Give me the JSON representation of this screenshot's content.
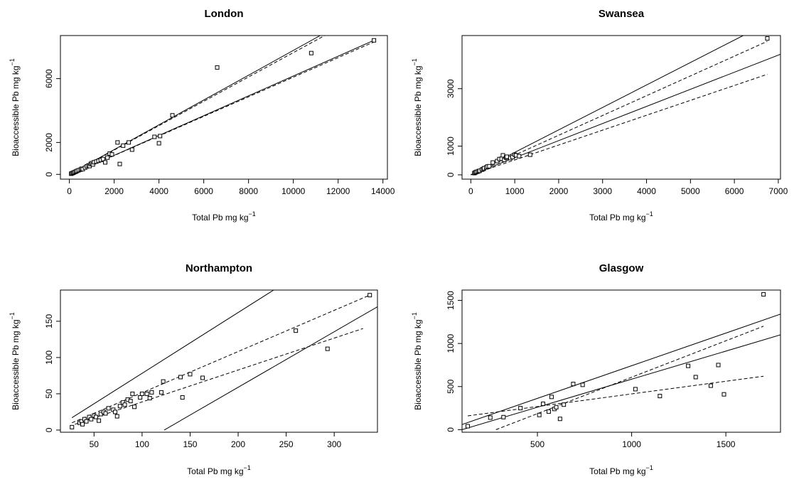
{
  "figure": {
    "type": "multi-panel scatter",
    "panel_count": 4,
    "line_color": "#000000",
    "background": "#ffffff"
  },
  "chart_data": [
    {
      "type": "scatter",
      "title": "London",
      "xlabel": "Total Pb mg kg",
      "xlabel_sup": "−1",
      "ylabel": "Bioaccessible Pb mg kg",
      "ylabel_sup": "−1",
      "xlim": [
        -400,
        14200
      ],
      "ylim": [
        -300,
        8700
      ],
      "xticks": [
        0,
        2000,
        4000,
        6000,
        8000,
        10000,
        12000,
        14000
      ],
      "yticks": [
        0,
        2000,
        6000
      ],
      "points": [
        [
          80,
          40
        ],
        [
          120,
          70
        ],
        [
          160,
          90
        ],
        [
          200,
          120
        ],
        [
          250,
          150
        ],
        [
          300,
          180
        ],
        [
          350,
          220
        ],
        [
          420,
          260
        ],
        [
          500,
          300
        ],
        [
          550,
          350
        ],
        [
          600,
          330
        ],
        [
          700,
          420
        ],
        [
          780,
          500
        ],
        [
          850,
          560
        ],
        [
          900,
          520
        ],
        [
          950,
          650
        ],
        [
          1000,
          700
        ],
        [
          1050,
          620
        ],
        [
          1100,
          760
        ],
        [
          1200,
          800
        ],
        [
          1300,
          850
        ],
        [
          1400,
          900
        ],
        [
          1500,
          960
        ],
        [
          1600,
          750
        ],
        [
          1700,
          1050
        ],
        [
          1800,
          1300
        ],
        [
          1900,
          1250
        ],
        [
          2150,
          2000
        ],
        [
          2250,
          650
        ],
        [
          2400,
          1800
        ],
        [
          2650,
          2000
        ],
        [
          2800,
          1550
        ],
        [
          3800,
          2350
        ],
        [
          4000,
          1950
        ],
        [
          4050,
          2400
        ],
        [
          4600,
          3700
        ],
        [
          6600,
          6700
        ],
        [
          10800,
          7600
        ],
        [
          13600,
          8400
        ]
      ],
      "fit_lines": [
        {
          "style": "solid",
          "x": [
            0,
            11200
          ],
          "y": [
            0,
            8700
          ]
        },
        {
          "style": "solid",
          "x": [
            0,
            13600
          ],
          "y": [
            -50,
            8400
          ]
        },
        {
          "style": "dashed",
          "x": [
            0,
            11400
          ],
          "y": [
            0,
            8700
          ]
        },
        {
          "style": "dashed",
          "x": [
            0,
            13600
          ],
          "y": [
            -50,
            8300
          ]
        }
      ]
    },
    {
      "type": "scatter",
      "title": "Swansea",
      "xlabel": "Total Pb mg kg",
      "xlabel_sup": "−1",
      "ylabel": "Bioaccessible Pb mg kg",
      "ylabel_sup": "−1",
      "xlim": [
        -200,
        7050
      ],
      "ylim": [
        -150,
        4850
      ],
      "xticks": [
        0,
        1000,
        2000,
        3000,
        4000,
        5000,
        6000,
        7000
      ],
      "yticks": [
        0,
        1000,
        3000
      ],
      "points": [
        [
          80,
          60
        ],
        [
          100,
          80
        ],
        [
          120,
          100
        ],
        [
          150,
          110
        ],
        [
          180,
          130
        ],
        [
          200,
          140
        ],
        [
          250,
          180
        ],
        [
          280,
          200
        ],
        [
          300,
          230
        ],
        [
          350,
          260
        ],
        [
          380,
          290
        ],
        [
          420,
          300
        ],
        [
          500,
          430
        ],
        [
          600,
          480
        ],
        [
          650,
          550
        ],
        [
          700,
          560
        ],
        [
          730,
          680
        ],
        [
          760,
          520
        ],
        [
          800,
          600
        ],
        [
          820,
          630
        ],
        [
          900,
          580
        ],
        [
          950,
          620
        ],
        [
          1000,
          700
        ],
        [
          1030,
          680
        ],
        [
          1100,
          650
        ],
        [
          1350,
          700
        ],
        [
          6750,
          4750
        ]
      ],
      "fit_lines": [
        {
          "style": "solid",
          "x": [
            0,
            6200
          ],
          "y": [
            0,
            4850
          ]
        },
        {
          "style": "solid",
          "x": [
            0,
            7050
          ],
          "y": [
            0,
            4200
          ]
        },
        {
          "style": "dashed",
          "x": [
            0,
            6750
          ],
          "y": [
            0,
            4650
          ]
        },
        {
          "style": "dashed",
          "x": [
            0,
            6750
          ],
          "y": [
            0,
            3500
          ]
        }
      ]
    },
    {
      "type": "scatter",
      "title": "Northampton",
      "xlabel": "Total Pb mg kg",
      "xlabel_sup": "−1",
      "ylabel": "Bioaccessible Pb mg kg",
      "ylabel_sup": "−1",
      "xlim": [
        15,
        345
      ],
      "ylim": [
        -3,
        193
      ],
      "xticks": [
        50,
        100,
        150,
        200,
        250,
        300
      ],
      "yticks": [
        0,
        50,
        100,
        150
      ],
      "points": [
        [
          27,
          4
        ],
        [
          35,
          10
        ],
        [
          37,
          12
        ],
        [
          38,
          8
        ],
        [
          40,
          15
        ],
        [
          42,
          12
        ],
        [
          45,
          18
        ],
        [
          47,
          15
        ],
        [
          50,
          20
        ],
        [
          52,
          18
        ],
        [
          55,
          13
        ],
        [
          57,
          22
        ],
        [
          60,
          25
        ],
        [
          62,
          23
        ],
        [
          65,
          30
        ],
        [
          70,
          28
        ],
        [
          72,
          25
        ],
        [
          74,
          19
        ],
        [
          77,
          33
        ],
        [
          80,
          38
        ],
        [
          82,
          35
        ],
        [
          85,
          42
        ],
        [
          88,
          40
        ],
        [
          90,
          50
        ],
        [
          92,
          32
        ],
        [
          98,
          45
        ],
        [
          100,
          50
        ],
        [
          105,
          50
        ],
        [
          108,
          44
        ],
        [
          110,
          52
        ],
        [
          120,
          52
        ],
        [
          122,
          67
        ],
        [
          140,
          73
        ],
        [
          142,
          45
        ],
        [
          150,
          77
        ],
        [
          163,
          72
        ],
        [
          260,
          137
        ],
        [
          293,
          112
        ],
        [
          337,
          186
        ]
      ],
      "fit_lines": [
        {
          "style": "solid",
          "x": [
            27,
            237
          ],
          "y": [
            17,
            193
          ]
        },
        {
          "style": "solid",
          "x": [
            123,
            345
          ],
          "y": [
            0,
            170
          ]
        },
        {
          "style": "dashed",
          "x": [
            27,
            337
          ],
          "y": [
            10,
            186
          ]
        },
        {
          "style": "dashed",
          "x": [
            30,
            330
          ],
          "y": [
            8,
            140
          ]
        }
      ]
    },
    {
      "type": "scatter",
      "title": "Glasgow",
      "xlabel": "Total Pb mg kg",
      "xlabel_sup": "−1",
      "ylabel": "Bioaccessible Pb mg kg",
      "ylabel_sup": "−1",
      "xlim": [
        100,
        1790
      ],
      "ylim": [
        -30,
        1620
      ],
      "xticks": [
        500,
        1000,
        1500
      ],
      "yticks": [
        0,
        500,
        1000,
        1500
      ],
      "points": [
        [
          130,
          40
        ],
        [
          250,
          140
        ],
        [
          320,
          145
        ],
        [
          410,
          250
        ],
        [
          510,
          170
        ],
        [
          530,
          300
        ],
        [
          560,
          210
        ],
        [
          575,
          380
        ],
        [
          590,
          240
        ],
        [
          600,
          260
        ],
        [
          620,
          125
        ],
        [
          640,
          290
        ],
        [
          690,
          530
        ],
        [
          740,
          520
        ],
        [
          1020,
          470
        ],
        [
          1150,
          390
        ],
        [
          1300,
          740
        ],
        [
          1340,
          610
        ],
        [
          1420,
          510
        ],
        [
          1460,
          750
        ],
        [
          1490,
          410
        ],
        [
          1700,
          1570
        ]
      ],
      "fit_lines": [
        {
          "style": "solid",
          "x": [
            100,
            1790
          ],
          "y": [
            60,
            1340
          ]
        },
        {
          "style": "solid",
          "x": [
            100,
            1790
          ],
          "y": [
            0,
            1100
          ]
        },
        {
          "style": "dashed",
          "x": [
            280,
            1700
          ],
          "y": [
            0,
            1200
          ]
        },
        {
          "style": "dashed",
          "x": [
            130,
            1700
          ],
          "y": [
            160,
            620
          ]
        }
      ]
    }
  ]
}
